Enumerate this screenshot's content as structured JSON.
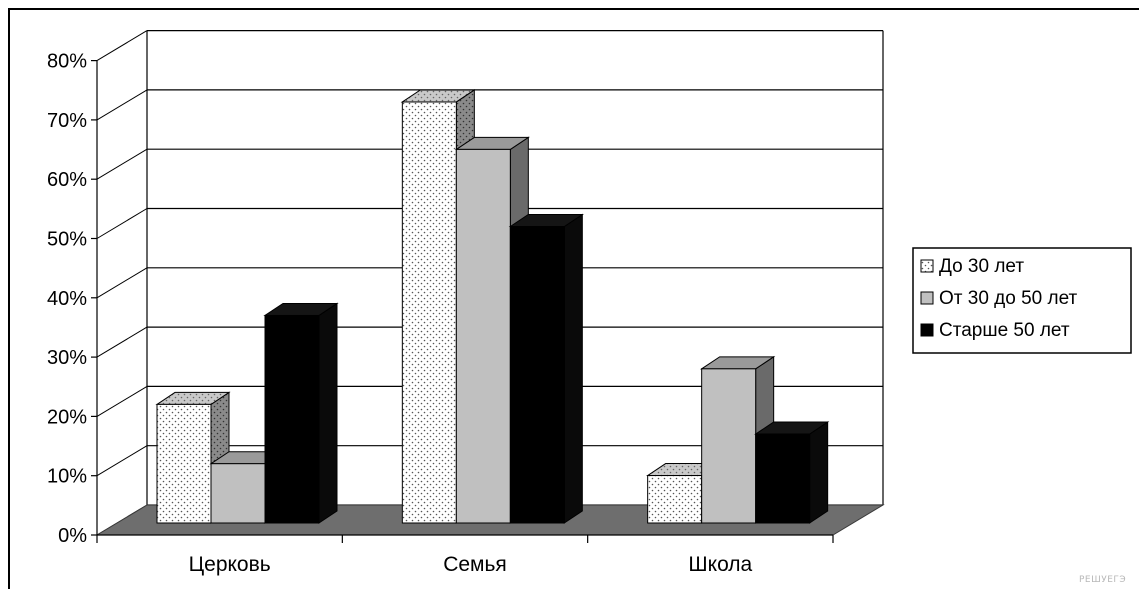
{
  "chart_data": {
    "type": "bar",
    "three_d": true,
    "categories": [
      "Церковь",
      "Семья",
      "Школа"
    ],
    "series": [
      {
        "name": "До 30 лет",
        "values": [
          20,
          71,
          8
        ],
        "pattern": "dotted-white"
      },
      {
        "name": "От 30 до 50 лет",
        "values": [
          10,
          63,
          26
        ],
        "color": "#c0c0c0"
      },
      {
        "name": "Старше 50 лет",
        "values": [
          35,
          50,
          15
        ],
        "color": "#000000"
      }
    ],
    "ylim": [
      0,
      80
    ],
    "yticks": [
      "0%",
      "10%",
      "20%",
      "30%",
      "40%",
      "50%",
      "60%",
      "70%",
      "80%"
    ],
    "grid": true,
    "legend_position": "right",
    "floor_color": "#6e6e6e"
  },
  "watermark": "РЕШУЕГЭ"
}
